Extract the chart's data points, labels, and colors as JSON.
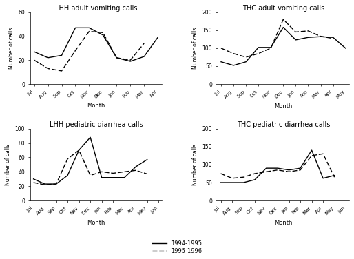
{
  "lhh_vomiting": {
    "title": "LHH adult vomiting calls",
    "months": [
      "Jul",
      "Aug",
      "Sep",
      "Oct",
      "Nov",
      "Dec",
      "Jan",
      "Feb",
      "Mar",
      "Apr"
    ],
    "s1": [
      27,
      22,
      24,
      47,
      47,
      41,
      22,
      19,
      23,
      39
    ],
    "s2": [
      20,
      13,
      11,
      28,
      44,
      43,
      22,
      20,
      34,
      null
    ],
    "ylim": [
      0,
      60
    ],
    "yticks": [
      0,
      20,
      40,
      60
    ]
  },
  "thc_vomiting": {
    "title": "THC adult vomiting calls",
    "months": [
      "Jul",
      "Aug",
      "Sep",
      "Oct",
      "Nov",
      "Dec",
      "Jan",
      "Feb",
      "Mar",
      "Apr",
      "May"
    ],
    "s1": [
      62,
      52,
      62,
      102,
      102,
      158,
      123,
      130,
      132,
      130,
      100
    ],
    "s2": [
      100,
      85,
      75,
      85,
      100,
      180,
      145,
      148,
      133,
      127,
      null
    ],
    "ylim": [
      0,
      200
    ],
    "yticks": [
      0,
      50,
      100,
      150,
      200
    ]
  },
  "lhh_diarrhea": {
    "title": "LHH pediatric diarrhea calls",
    "months": [
      "Jul",
      "Aug",
      "Sep",
      "Oct",
      "Nov",
      "Dec",
      "Jan",
      "Feb",
      "Mar",
      "Apr",
      "May",
      "Jun"
    ],
    "s1": [
      30,
      23,
      23,
      35,
      70,
      88,
      32,
      32,
      32,
      47,
      57,
      null
    ],
    "s2": [
      25,
      22,
      23,
      58,
      70,
      35,
      40,
      38,
      40,
      42,
      37,
      null
    ],
    "ylim": [
      0,
      100
    ],
    "yticks": [
      0,
      20,
      40,
      60,
      80,
      100
    ]
  },
  "thc_diarrhea": {
    "title": "THC pediatric diarrhea calls",
    "months": [
      "Jul",
      "Aug",
      "Sep",
      "Oct",
      "Nov",
      "Dec",
      "Jan",
      "Feb",
      "Mar",
      "Apr",
      "May",
      "Jun"
    ],
    "s1": [
      50,
      50,
      50,
      58,
      90,
      90,
      85,
      90,
      140,
      62,
      70,
      null
    ],
    "s2": [
      75,
      62,
      65,
      75,
      80,
      85,
      80,
      85,
      125,
      130,
      65,
      null
    ],
    "ylim": [
      0,
      200
    ],
    "yticks": [
      0,
      50,
      100,
      150,
      200
    ]
  },
  "legend": {
    "s1_label": "1994-1995",
    "s2_label": "1995-1996"
  },
  "ylabel": "Number of calls",
  "xlabel": "Month",
  "line_color": "#000000",
  "bg_color": "#ffffff"
}
